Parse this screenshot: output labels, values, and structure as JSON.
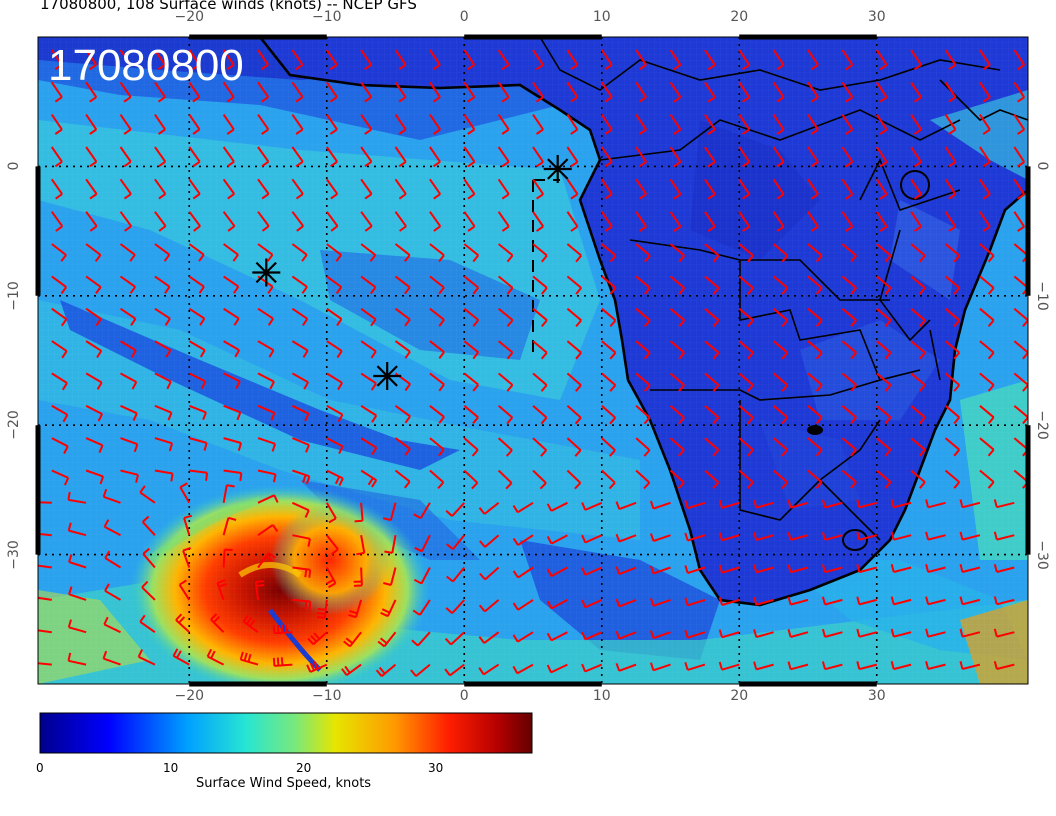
{
  "title": "17080800, 108 Surface winds (knots) -- NCEP GFS",
  "stamp": "17080800",
  "map": {
    "lon_range": [
      -31,
      41
    ],
    "lat_range": [
      -40,
      10
    ],
    "lon_ticks": [
      "−20",
      "−10",
      "0",
      "10",
      "20",
      "30"
    ],
    "lon_tick_values": [
      -20,
      -10,
      0,
      10,
      20,
      30
    ],
    "lat_ticks_left": [
      "0",
      "−10",
      "−20",
      "−30"
    ],
    "lat_ticks_right": [
      "0",
      "−10",
      "−20",
      "−30"
    ],
    "lat_tick_values": [
      0,
      -10,
      -20,
      -30
    ],
    "grid": true,
    "barb_color": "#ff0000",
    "land_color": "#1e3ad6",
    "storm_markers": [
      {
        "lon": -14.4,
        "lat": -8.2
      },
      {
        "lon": -5.6,
        "lat": -16.2
      },
      {
        "lon": 6.8,
        "lat": -0.2
      }
    ],
    "cyclone_center": {
      "lon": -12.5,
      "lat": -34.0
    }
  },
  "colorbar": {
    "title": "Surface Wind Speed, knots",
    "min": 0,
    "max": 37,
    "tick_labels": [
      "0",
      "10",
      "20",
      "30"
    ],
    "tick_values": [
      0,
      10,
      20,
      30
    ],
    "colormap": [
      "#00008c",
      "#0000ff",
      "#00b4ff",
      "#28e6d2",
      "#7ae87a",
      "#e6e600",
      "#ff9a00",
      "#ff1e00",
      "#a00000",
      "#640000"
    ]
  }
}
